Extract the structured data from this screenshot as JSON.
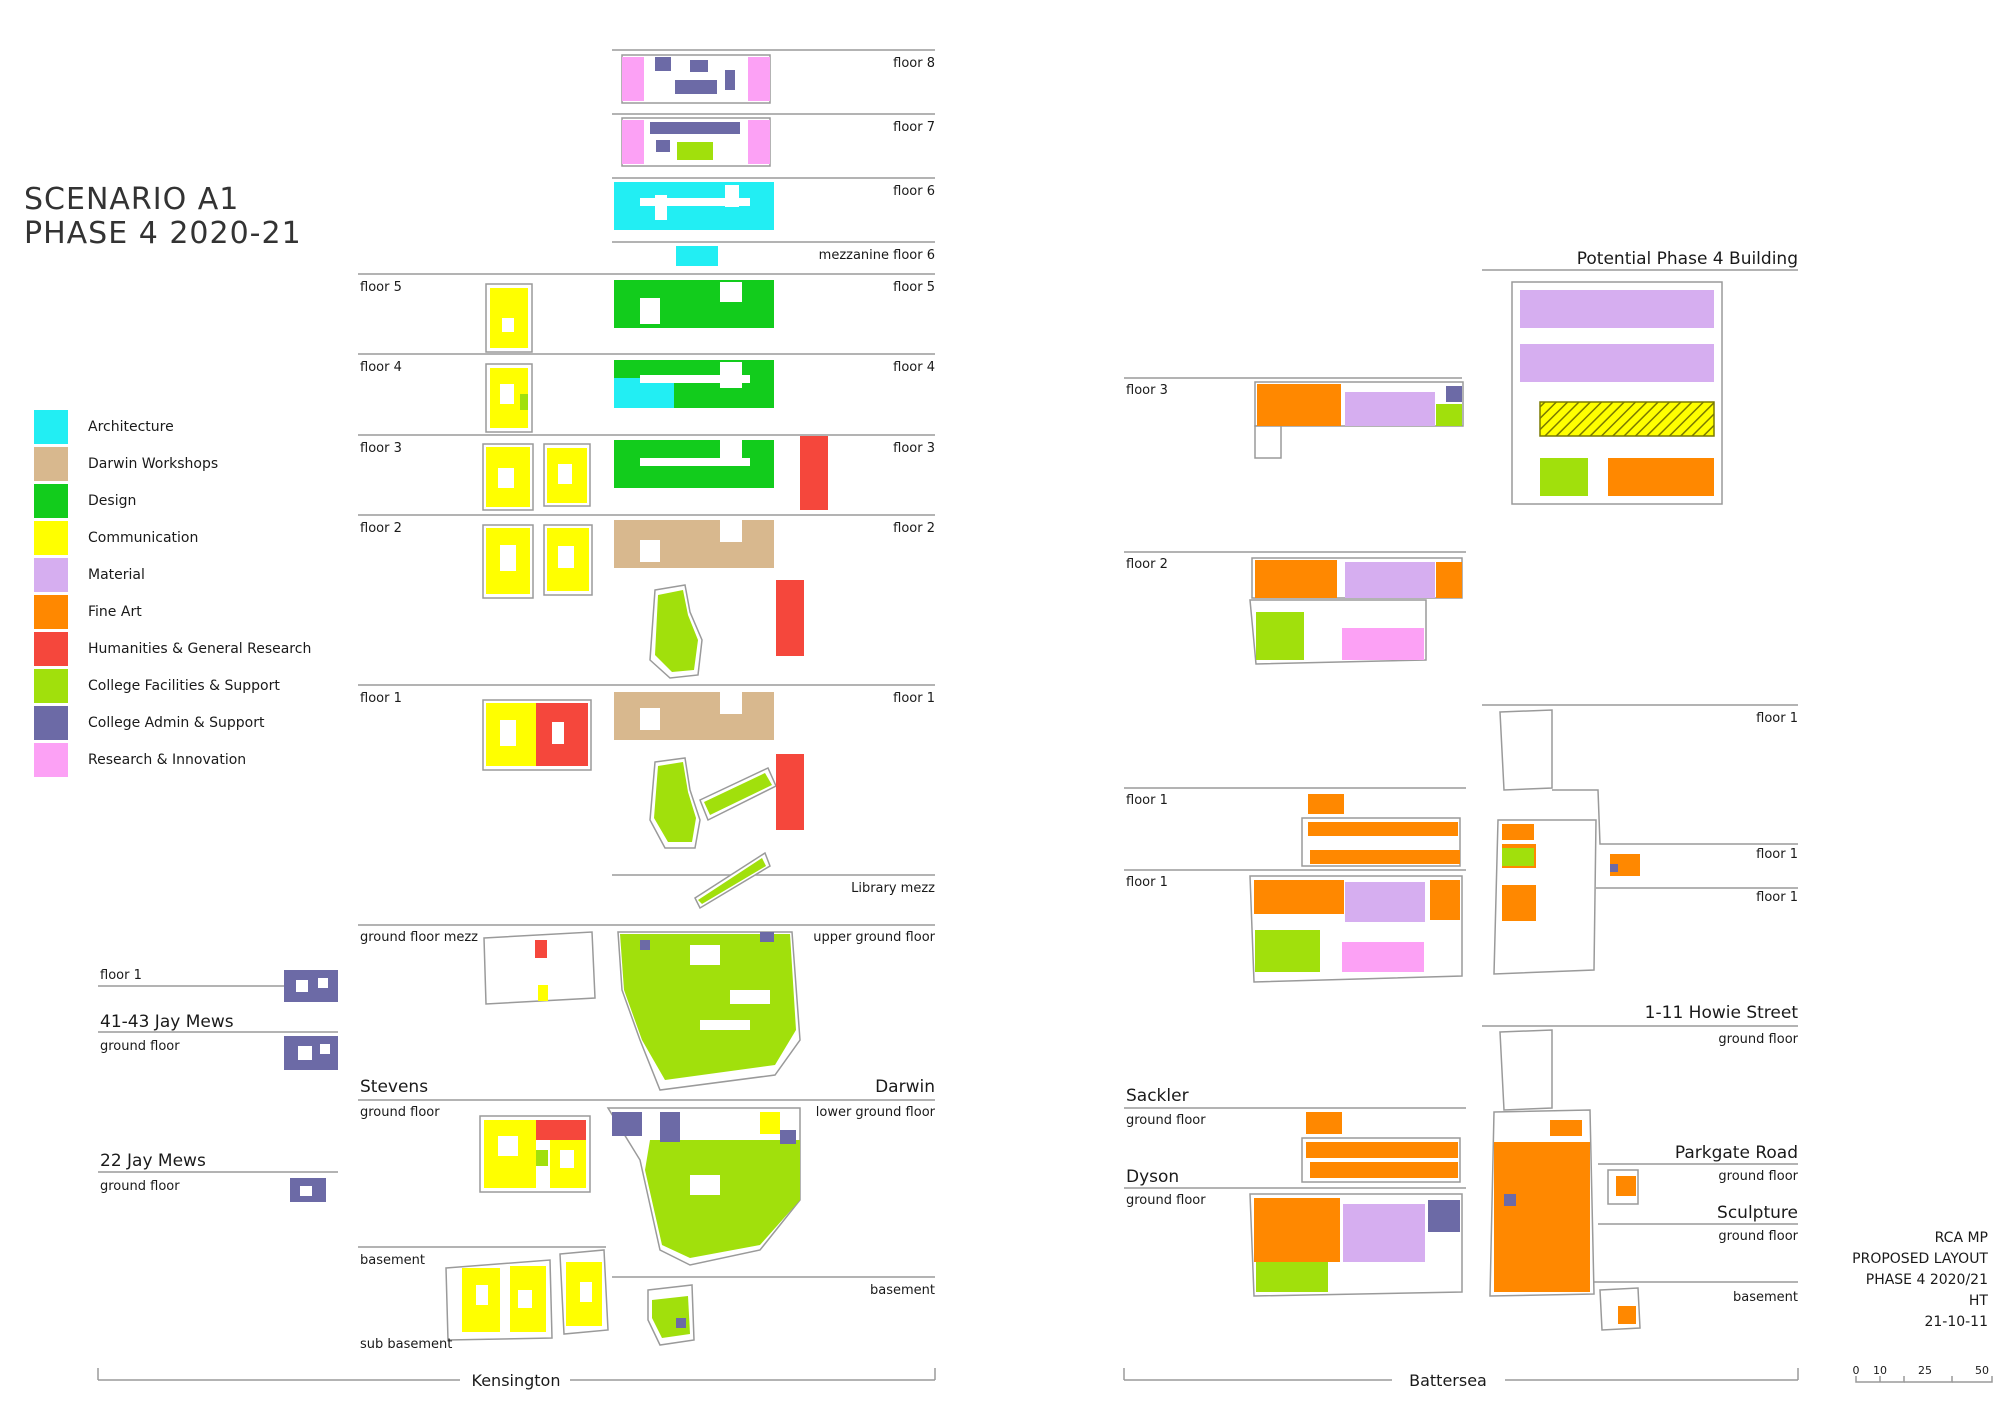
{
  "title": {
    "line1": "SCENARIO A1",
    "line2": "PHASE 4 2020-21"
  },
  "legend": [
    {
      "label": "Architecture",
      "color": "#22eef3"
    },
    {
      "label": "Darwin Workshops",
      "color": "#d8b88e"
    },
    {
      "label": "Design",
      "color": "#12cc1c"
    },
    {
      "label": "Communication",
      "color": "#ffff00"
    },
    {
      "label": "Material",
      "color": "#d6aef0"
    },
    {
      "label": "Fine Art",
      "color": "#ff8800"
    },
    {
      "label": "Humanities & General Research",
      "color": "#f5473c"
    },
    {
      "label": "College Facilities & Support",
      "color": "#a1e00c"
    },
    {
      "label": "College Admin & Support",
      "color": "#6c6aa6"
    },
    {
      "label": "Research & Innovation",
      "color": "#fca1f5"
    }
  ],
  "colors": {
    "line": "#9a9a9a",
    "outline": "#9a9a9a",
    "hatch_bg": "#ffff00",
    "hatch_line": "#7a7a00"
  },
  "kensington": {
    "darwin_floors": {
      "floor8": "floor 8",
      "floor7": "floor 7",
      "floor6": "floor 6",
      "mezz6": "mezzanine floor 6",
      "floor5": "floor 5",
      "floor4": "floor 4",
      "floor3": "floor 3",
      "floor2": "floor 2",
      "floor1": "floor 1",
      "library": "Library mezz",
      "upper_ground": "upper ground floor",
      "lower_ground": "lower ground floor",
      "basement": "basement"
    },
    "stevens_floors": {
      "floor5": "floor 5",
      "floor4": "floor 4",
      "floor3": "floor 3",
      "floor2": "floor 2",
      "floor1": "floor 1",
      "ground_mezz": "ground floor mezz",
      "ground": "ground floor",
      "basement": "basement",
      "sub_basement": "sub basement"
    },
    "buildings": {
      "stevens": "Stevens",
      "darwin": "Darwin",
      "jay41": "41-43 Jay Mews",
      "jay22": "22 Jay Mews"
    },
    "jay_floors": {
      "floor1": "floor 1",
      "ground1": "ground floor",
      "ground2": "ground floor"
    },
    "site_label": "Kensington"
  },
  "battersea": {
    "potential": "Potential Phase 4 Building",
    "sackler_dyson_floors": {
      "floor3": "floor 3",
      "floor2": "floor 2",
      "floor1a": "floor 1",
      "floor1b": "floor 1",
      "sackler_ground": "ground floor",
      "dyson_ground": "ground floor"
    },
    "howie_floors": {
      "floor1a": "floor 1",
      "floor1b": "floor 1",
      "floor1c": "floor 1",
      "ground": "ground floor",
      "parkgate_ground": "ground floor",
      "sculpture_ground": "ground floor",
      "basement": "basement"
    },
    "buildings": {
      "sackler": "Sackler",
      "dyson": "Dyson",
      "howie": "1-11 Howie Street",
      "parkgate": "Parkgate Road",
      "sculpture": "Sculpture"
    },
    "site_label": "Battersea"
  },
  "notes": [
    "RCA MP",
    "PROPOSED LAYOUT",
    "PHASE 4 2020/21",
    "HT",
    "21-10-11"
  ],
  "scale_labels": [
    "0",
    "10",
    "25",
    "50"
  ]
}
